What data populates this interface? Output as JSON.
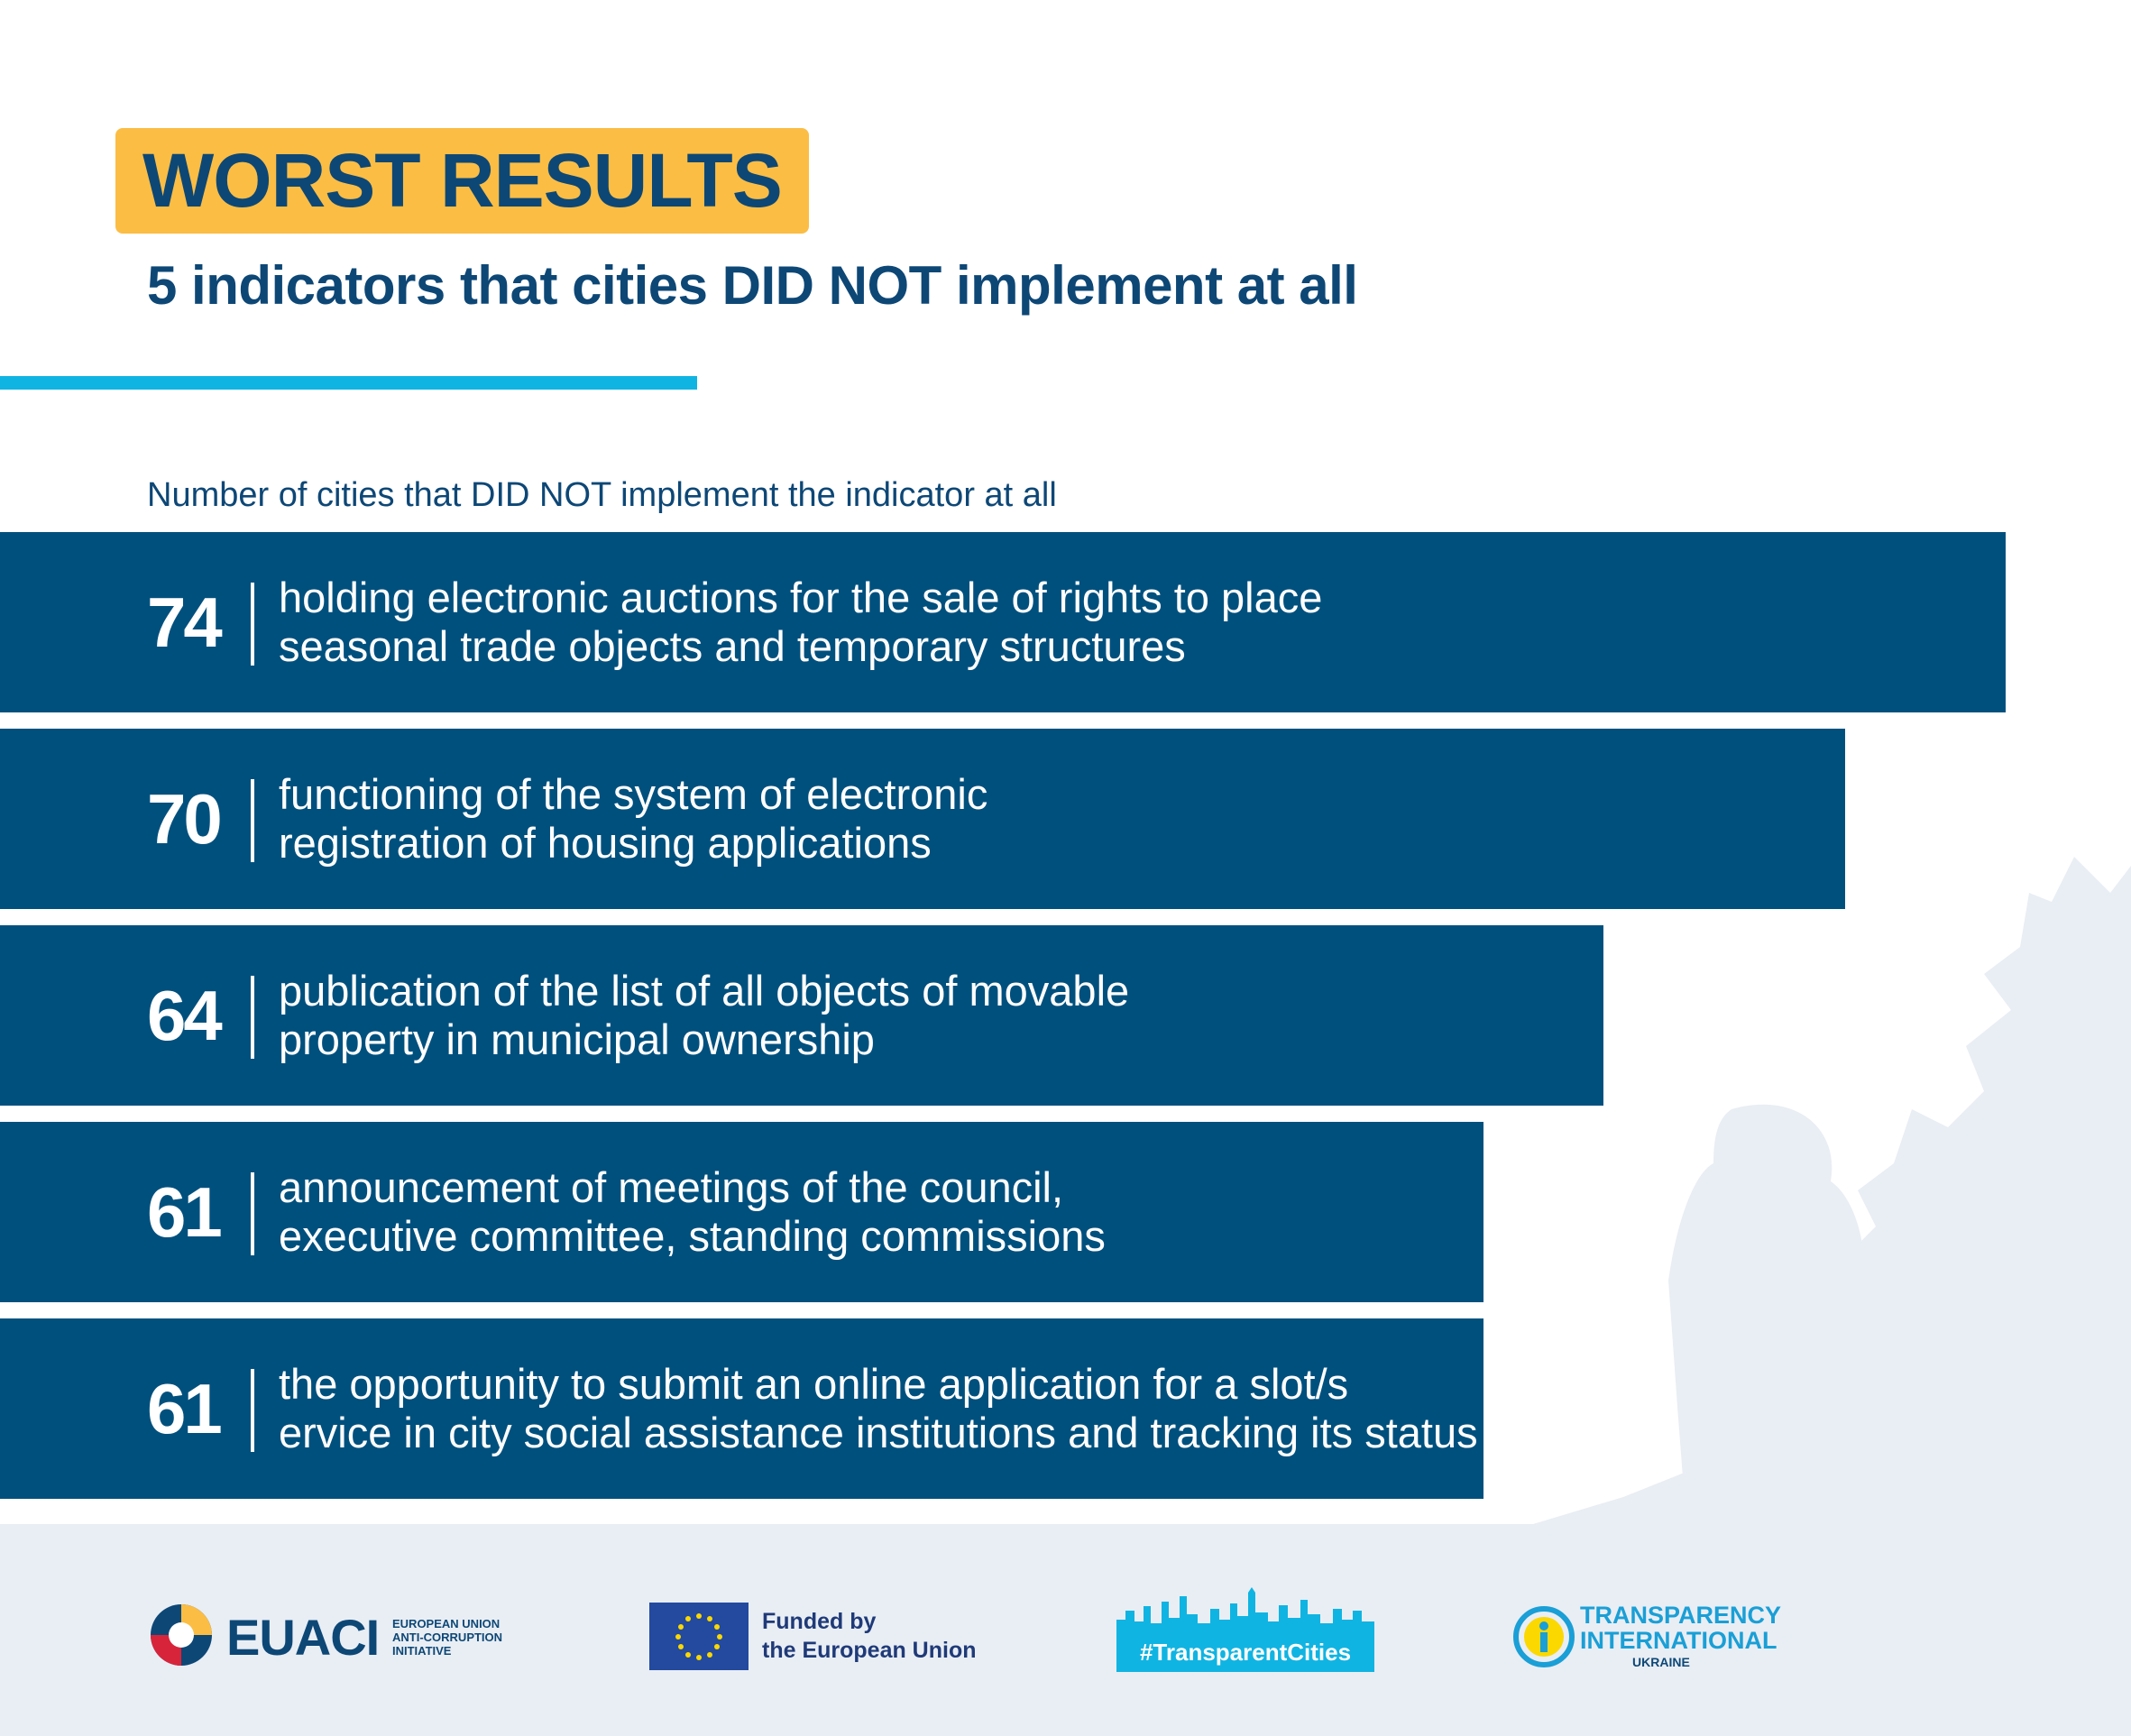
{
  "header": {
    "title": "WORST RESULTS",
    "subtitle": "5 indicators that cities DID NOT implement at all"
  },
  "colors": {
    "badge": "#fbbd44",
    "bar": "#00507e",
    "accent": "#10b4e2",
    "text_dark": "#0d4776",
    "footer_bg": "#e9eef4"
  },
  "chart_data": {
    "type": "bar",
    "orientation": "horizontal",
    "title": "Number of cities that DID NOT implement the indicator at all",
    "categories": [
      "holding electronic auctions for the sale of rights to place\nseasonal trade objects and temporary structures",
      "functioning of the system of electronic\nregistration of housing applications",
      "publication of the list of all objects of movable\nproperty in municipal ownership",
      "announcement of meetings of the council,\nexecutive committee, standing commissions",
      "the opportunity to submit an online application for a slot/s\nervice in city social assistance institutions and tracking its status"
    ],
    "values": [
      74,
      70,
      64,
      61,
      61
    ],
    "xlabel": "",
    "ylabel": "",
    "grid": false,
    "legend": "none"
  },
  "footer": {
    "euaci": {
      "name": "EUACI",
      "sub": "EUROPEAN UNION\nANTI-CORRUPTION\nINITIATIVE"
    },
    "eu": {
      "text": "Funded by\nthe European Union"
    },
    "transparent_cities": {
      "label": "#TransparentCities"
    },
    "ti": {
      "name": "TRANSPARENCY\nINTERNATIONAL",
      "sub": "UKRAINE"
    }
  }
}
